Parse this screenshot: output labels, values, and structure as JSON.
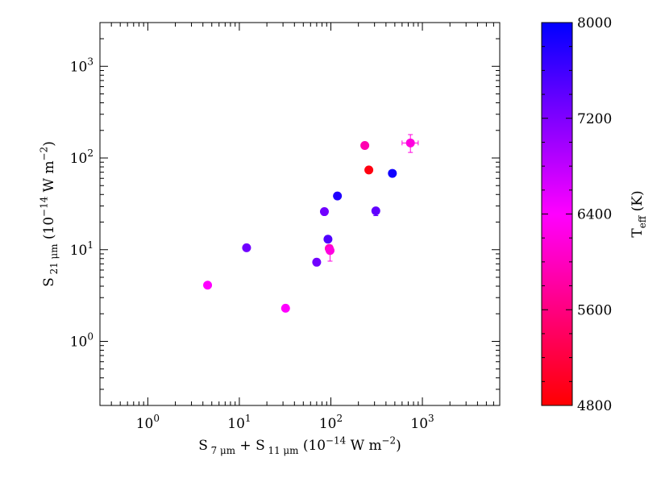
{
  "chart_data": {
    "type": "scatter",
    "title": "",
    "x_scale": "log",
    "y_scale": "log",
    "xlim": [
      0.3,
      7000
    ],
    "ylim": [
      0.2,
      3000
    ],
    "xlabel": {
      "parts": [
        [
          "S",
          "n"
        ],
        [
          " 7 μm",
          "sub"
        ],
        [
          " + S",
          "n"
        ],
        [
          " 11 μm",
          "sub"
        ],
        [
          " (10",
          "n"
        ],
        [
          "−14",
          "sup"
        ],
        [
          " W m",
          "n"
        ],
        [
          "−2",
          "sup"
        ],
        [
          ")",
          "n"
        ]
      ]
    },
    "ylabel": {
      "parts": [
        [
          "S",
          "n"
        ],
        [
          " 21 μm",
          "sub"
        ],
        [
          "  (10",
          "n"
        ],
        [
          "−14",
          "sup"
        ],
        [
          " W m",
          "n"
        ],
        [
          "−2",
          "sup"
        ],
        [
          ")",
          "n"
        ]
      ]
    },
    "xticks": [
      {
        "base": "10",
        "exp": "0",
        "value": 1
      },
      {
        "base": "10",
        "exp": "1",
        "value": 10
      },
      {
        "base": "10",
        "exp": "2",
        "value": 100
      },
      {
        "base": "10",
        "exp": "3",
        "value": 1000
      }
    ],
    "yticks": [
      {
        "base": "10",
        "exp": "0",
        "value": 1
      },
      {
        "base": "10",
        "exp": "1",
        "value": 10
      },
      {
        "base": "10",
        "exp": "2",
        "value": 100
      },
      {
        "base": "10",
        "exp": "3",
        "value": 1000
      }
    ],
    "grid": false,
    "colorbar": {
      "label": {
        "parts": [
          [
            "T",
            "n"
          ],
          [
            "eff",
            "sub"
          ],
          [
            " (K)",
            "n"
          ]
        ]
      },
      "range": [
        4800,
        8000
      ],
      "ticks": [
        4800,
        5600,
        6400,
        7200,
        8000
      ],
      "tick_labels": [
        "4800",
        "5600",
        "6400",
        "7200",
        "8000"
      ],
      "stops": [
        {
          "value": 4800,
          "color": "#ff0000"
        },
        {
          "value": 6400,
          "color": "#ff00ff"
        },
        {
          "value": 8000,
          "color": "#0000ff"
        }
      ]
    },
    "points": [
      {
        "x": 4.5,
        "y": 4.1,
        "teff": 6400
      },
      {
        "x": 12,
        "y": 10.5,
        "teff": 7300
      },
      {
        "x": 32,
        "y": 2.3,
        "teff": 6400
      },
      {
        "x": 70,
        "y": 7.3,
        "teff": 7300
      },
      {
        "x": 85,
        "y": 26,
        "teff": 7300
      },
      {
        "x": 93,
        "y": 13,
        "teff": 7500,
        "yerr": [
          12.2,
          13.8
        ]
      },
      {
        "x": 96,
        "y": 10.3,
        "teff": 6000
      },
      {
        "x": 98,
        "y": 9.8,
        "teff": 6200,
        "yerr": [
          7.5,
          11.2
        ]
      },
      {
        "x": 118,
        "y": 38.5,
        "teff": 7800
      },
      {
        "x": 235,
        "y": 137,
        "teff": 5900
      },
      {
        "x": 260,
        "y": 74,
        "teff": 4900
      },
      {
        "x": 310,
        "y": 26.5,
        "teff": 7400,
        "yerr": [
          23.5,
          28.5
        ]
      },
      {
        "x": 470,
        "y": 68,
        "teff": 7900
      },
      {
        "x": 740,
        "y": 146,
        "teff": 6200,
        "yerr": [
          115,
          180
        ],
        "xerr": [
          600,
          900
        ]
      }
    ]
  }
}
